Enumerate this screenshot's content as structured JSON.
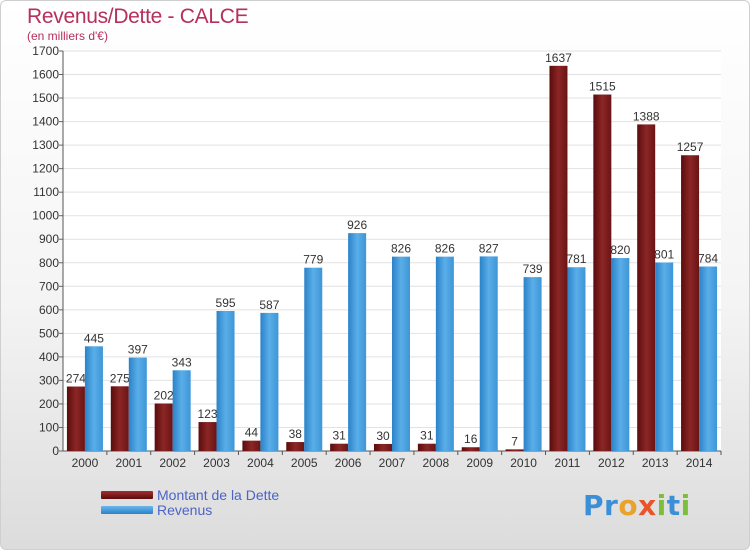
{
  "chart_data": {
    "type": "bar",
    "title": "Revenus/Dette - CALCE",
    "subtitle": "(en milliers d'€)",
    "categories": [
      "2000",
      "2001",
      "2002",
      "2003",
      "2004",
      "2005",
      "2006",
      "2007",
      "2008",
      "2009",
      "2010",
      "2011",
      "2012",
      "2013",
      "2014"
    ],
    "series": [
      {
        "name": "Montant de la Dette",
        "color": "#7a1a1a",
        "values": [
          274,
          275,
          202,
          123,
          44,
          38,
          31,
          30,
          31,
          16,
          7,
          1637,
          1515,
          1388,
          1257
        ]
      },
      {
        "name": "Revenus",
        "color": "#3d96d8",
        "values": [
          445,
          397,
          343,
          595,
          587,
          779,
          926,
          826,
          826,
          827,
          739,
          781,
          820,
          801,
          784
        ]
      }
    ],
    "ylim": [
      0,
      1700
    ],
    "yticks": [
      0,
      100,
      200,
      300,
      400,
      500,
      600,
      700,
      800,
      900,
      1000,
      1100,
      1200,
      1300,
      1400,
      1500,
      1600,
      1700
    ],
    "grid": true,
    "legend_position": "bottom-left"
  },
  "logo": {
    "letters": [
      {
        "ch": "P",
        "color": "#3a8fd6"
      },
      {
        "ch": "r",
        "color": "#3a8fd6"
      },
      {
        "ch": "o",
        "color": "#e9a22a"
      },
      {
        "ch": "x",
        "color": "#e9542a"
      },
      {
        "ch": "i",
        "color": "#7cbf3a"
      },
      {
        "ch": "t",
        "color": "#3a8fd6"
      },
      {
        "ch": "i",
        "color": "#7cbf3a"
      }
    ]
  }
}
